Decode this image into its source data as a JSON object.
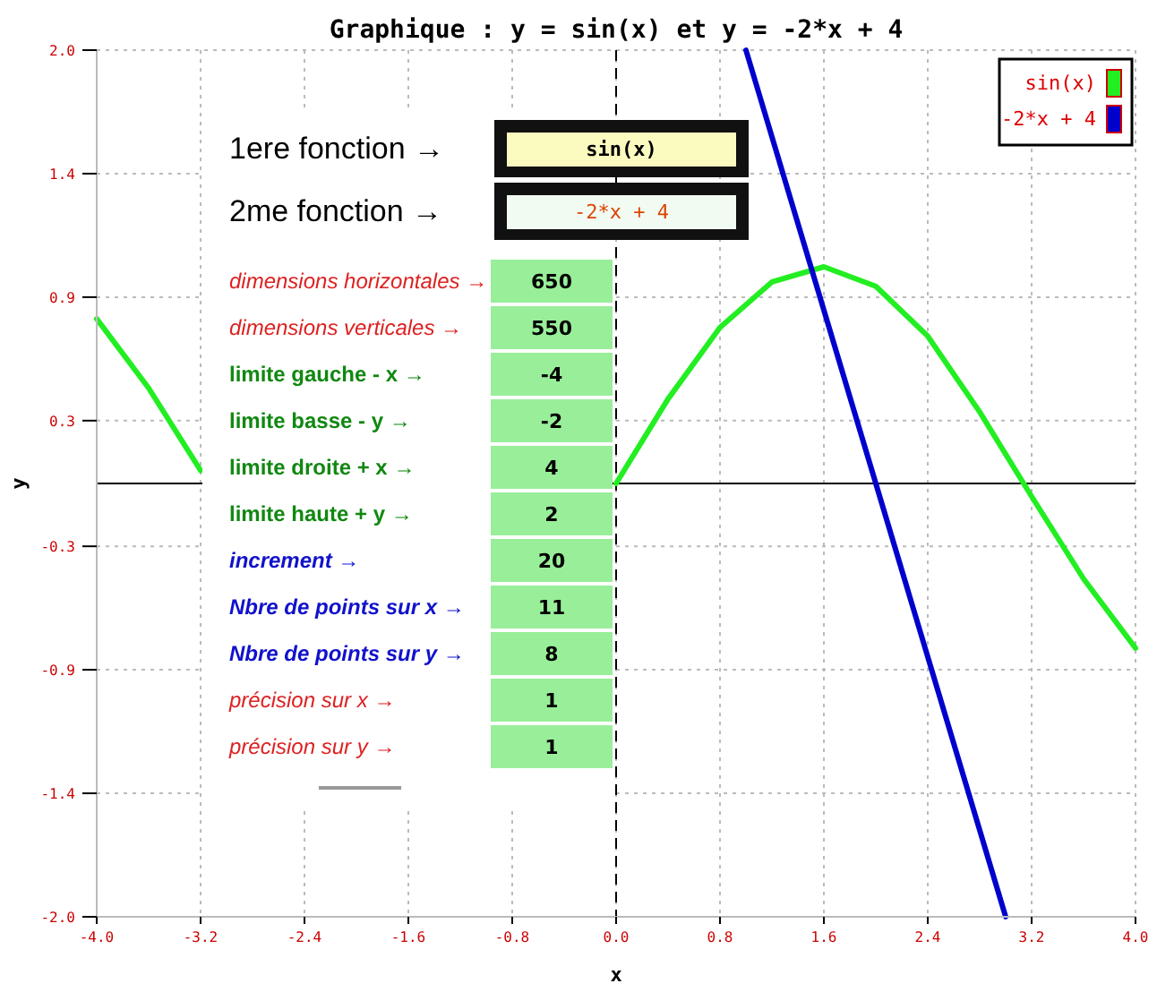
{
  "chart_data": {
    "type": "line",
    "title": "Graphique : y = sin(x) et y = -2*x + 4",
    "xlabel": "x",
    "ylabel": "y",
    "xlim": [
      -4,
      4
    ],
    "ylim": [
      -2,
      2
    ],
    "xticks": [
      {
        "value": -4,
        "label": "-4.0"
      },
      -3.2,
      -2.4,
      -1.6,
      -0.8,
      {
        "value": 0,
        "label": "0.0"
      },
      0.8,
      1.6,
      2.4,
      3.2,
      {
        "value": 4,
        "label": "4.0"
      }
    ],
    "yticks": [
      {
        "value": -2,
        "label": "-2.0"
      },
      {
        "value": -1.43,
        "label": "-1.4"
      },
      {
        "value": -0.86,
        "label": "-0.9"
      },
      {
        "value": -0.29,
        "label": "-0.3"
      },
      {
        "value": 0.29,
        "label": "0.3"
      },
      {
        "value": 0.86,
        "label": "0.9"
      },
      {
        "value": 1.43,
        "label": "1.4"
      },
      {
        "value": 2,
        "label": "2.0"
      }
    ],
    "grid": true,
    "legend": "top right",
    "series": [
      {
        "name": "sin(x)",
        "color": "#22ee22",
        "x": [
          -4,
          -3.6,
          -3.2,
          -2.8,
          -2.4,
          -2,
          -1.6,
          -1.2,
          -0.8,
          -0.4,
          0,
          0.4,
          0.8,
          1.2,
          1.6,
          2,
          2.4,
          2.8,
          3.2,
          3.6,
          4
        ],
        "values": [
          0.76,
          0.44,
          0.06,
          null,
          null,
          null,
          null,
          null,
          null,
          null,
          0,
          0.39,
          0.72,
          0.93,
          1,
          0.91,
          0.68,
          0.33,
          -0.06,
          -0.44,
          -0.76
        ]
      },
      {
        "name": "-2*x + 4",
        "color": "#0000cc",
        "x": [
          1,
          3
        ],
        "values": [
          2,
          -2
        ]
      }
    ],
    "ref_lines": [
      {
        "axis": "y",
        "value": 0,
        "color": "#000000",
        "line_style": "solid"
      },
      {
        "axis": "x",
        "value": 0,
        "color": "#000000",
        "line_style": "dashed"
      }
    ],
    "annotations": [
      "1ere fonction →",
      "sin(x)",
      "2me fonction →",
      "-2*x + 4",
      "dimensions horizontales →",
      "650",
      "dimensions verticales →",
      "550",
      "limite gauche - x →",
      "-4",
      "limite basse - y →",
      "-2",
      "limite droite + x →",
      "4",
      "limite haute + y →",
      "2",
      "increment →",
      "20",
      "Nbre de points sur x →",
      "11",
      "Nbre de points sur y →",
      "8",
      "précision sur x →",
      "1",
      "précision sur y →",
      "1"
    ]
  }
}
